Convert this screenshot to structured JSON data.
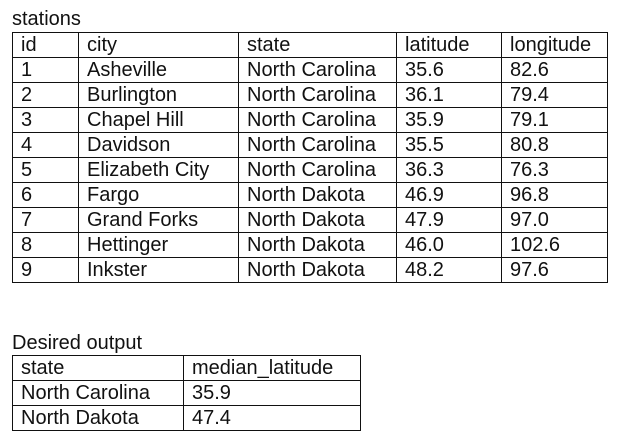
{
  "stations": {
    "caption": "stations",
    "columns": [
      "id",
      "city",
      "state",
      "latitude",
      "longitude"
    ],
    "rows": [
      [
        "1",
        "Asheville",
        "North Carolina",
        "35.6",
        "82.6"
      ],
      [
        "2",
        "Burlington",
        "North Carolina",
        "36.1",
        "79.4"
      ],
      [
        "3",
        "Chapel Hill",
        "North Carolina",
        "35.9",
        "79.1"
      ],
      [
        "4",
        "Davidson",
        "North Carolina",
        "35.5",
        "80.8"
      ],
      [
        "5",
        "Elizabeth City",
        "North Carolina",
        "36.3",
        "76.3"
      ],
      [
        "6",
        "Fargo",
        "North Dakota",
        "46.9",
        "96.8"
      ],
      [
        "7",
        "Grand Forks",
        "North Dakota",
        "47.9",
        "97.0"
      ],
      [
        "8",
        "Hettinger",
        "North Dakota",
        "46.0",
        "102.6"
      ],
      [
        "9",
        "Inkster",
        "North Dakota",
        "48.2",
        "97.6"
      ]
    ]
  },
  "output": {
    "caption": "Desired output",
    "columns": [
      "state",
      "median_latitude"
    ],
    "rows": [
      [
        "North Carolina",
        "35.9"
      ],
      [
        "North Dakota",
        "47.4"
      ]
    ]
  }
}
